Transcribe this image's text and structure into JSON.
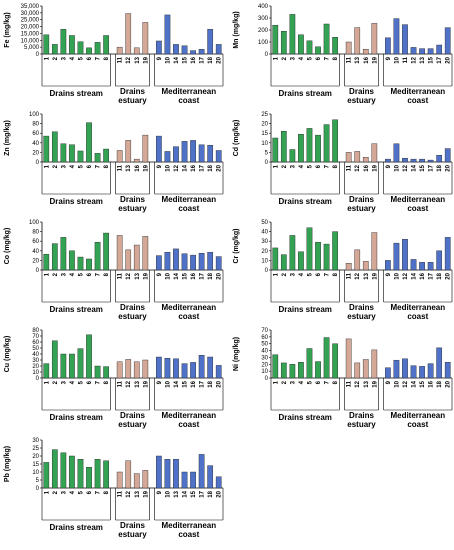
{
  "colors": {
    "drains_stream": "#33a353",
    "drains_estuary": "#d4a796",
    "mediterranean_coast": "#4f72c8",
    "bar_edge": "#222222"
  },
  "chart_data": [
    {
      "type": "bar",
      "ylabel": "Fe (mg/kg)",
      "ylim": [
        0,
        35000
      ],
      "yticks": [
        0,
        5000,
        10000,
        15000,
        20000,
        25000,
        30000,
        35000
      ],
      "ytick_labels": [
        "0",
        "5,000",
        "10,000",
        "15,000",
        "20,000",
        "25,000",
        "30,000",
        "35,000"
      ],
      "categories": [
        "1",
        "2",
        "3",
        "4",
        "5",
        "6",
        "7",
        "8",
        "11",
        "12",
        "13",
        "19",
        "9",
        "10",
        "14",
        "15",
        "16",
        "17",
        "18",
        "20"
      ],
      "groups": [
        {
          "label_lines": [
            "Drains stream"
          ],
          "values": [
            14000,
            7000,
            18000,
            13500,
            9000,
            4500,
            8500,
            13500
          ]
        },
        {
          "label_lines": [
            "Drains",
            "estuary"
          ],
          "values": [
            5000,
            29500,
            4500,
            23000
          ]
        },
        {
          "label_lines": [
            "Mediterranean",
            "coast"
          ],
          "values": [
            9500,
            28500,
            7000,
            6000,
            2500,
            3500,
            18000,
            7000
          ]
        }
      ]
    },
    {
      "type": "bar",
      "ylabel": "Mn (mg/kg)",
      "ylim": [
        0,
        400
      ],
      "yticks": [
        0,
        100,
        200,
        300,
        400
      ],
      "ytick_labels": [
        "0",
        "100",
        "200",
        "300",
        "400"
      ],
      "categories": [
        "1",
        "2",
        "3",
        "4",
        "5",
        "6",
        "7",
        "8",
        "11",
        "13",
        "16",
        "19",
        "9",
        "10",
        "11",
        "12",
        "13",
        "15",
        "17",
        "20"
      ],
      "groups": [
        {
          "label_lines": [
            "Drains stream"
          ],
          "values": [
            240,
            190,
            330,
            160,
            110,
            60,
            250,
            140
          ]
        },
        {
          "label_lines": [
            "Drains",
            "estuary"
          ],
          "values": [
            100,
            220,
            40,
            255
          ]
        },
        {
          "label_lines": [
            "Mediterranean",
            "coast"
          ],
          "values": [
            135,
            295,
            245,
            55,
            45,
            45,
            75,
            220
          ]
        }
      ]
    },
    {
      "type": "bar",
      "ylabel": "Zn (mg/kg)",
      "ylim": [
        0,
        100
      ],
      "yticks": [
        0,
        20,
        40,
        60,
        80,
        100
      ],
      "ytick_labels": [
        "0",
        "20",
        "40",
        "60",
        "80",
        "100"
      ],
      "categories": [
        "1",
        "2",
        "3",
        "4",
        "5",
        "6",
        "7",
        "8",
        "11",
        "13",
        "16",
        "19",
        "9",
        "10",
        "12",
        "14",
        "16",
        "17",
        "18",
        "20"
      ],
      "groups": [
        {
          "label_lines": [
            "Drains stream"
          ],
          "values": [
            54,
            63,
            38,
            36,
            23,
            82,
            18,
            27
          ]
        },
        {
          "label_lines": [
            "Drains",
            "estuary"
          ],
          "values": [
            24,
            45,
            6,
            56
          ]
        },
        {
          "label_lines": [
            "Mediterranean",
            "coast"
          ],
          "values": [
            54,
            22,
            32,
            43,
            45,
            36,
            35,
            24
          ]
        }
      ]
    },
    {
      "type": "bar",
      "ylabel": "Cd (mg/kg)",
      "ylim": [
        0,
        25
      ],
      "yticks": [
        0,
        5,
        10,
        15,
        20,
        25
      ],
      "ytick_labels": [
        "0",
        "5",
        "10",
        "15",
        "20",
        "25"
      ],
      "categories": [
        "1",
        "2",
        "3",
        "4",
        "5",
        "6",
        "7",
        "8",
        "11",
        "12",
        "16",
        "19",
        "9",
        "10",
        "12",
        "14",
        "15",
        "17",
        "18",
        "20"
      ],
      "groups": [
        {
          "label_lines": [
            "Drains stream"
          ],
          "values": [
            12.5,
            16,
            6.5,
            14.5,
            17.5,
            14,
            19.5,
            22
          ]
        },
        {
          "label_lines": [
            "Drains",
            "estuary"
          ],
          "values": [
            5,
            5.5,
            2.5,
            9.5
          ]
        },
        {
          "label_lines": [
            "Mediterranean",
            "coast"
          ],
          "values": [
            1.5,
            9.5,
            2,
            1.5,
            1.5,
            1,
            3.5,
            7
          ]
        }
      ]
    },
    {
      "type": "bar",
      "ylabel": "Co (mg/kg)",
      "ylim": [
        0,
        100
      ],
      "yticks": [
        0,
        20,
        40,
        60,
        80,
        100
      ],
      "ytick_labels": [
        "0",
        "20",
        "40",
        "60",
        "80",
        "100"
      ],
      "categories": [
        "1",
        "2",
        "3",
        "4",
        "5",
        "6",
        "7",
        "8",
        "11",
        "12",
        "13",
        "19",
        "9",
        "10",
        "14",
        "15",
        "16",
        "17",
        "18",
        "20"
      ],
      "groups": [
        {
          "label_lines": [
            "Drains stream"
          ],
          "values": [
            33,
            55,
            68,
            40,
            27,
            23,
            58,
            77
          ]
        },
        {
          "label_lines": [
            "Drains",
            "estuary"
          ],
          "values": [
            72,
            42,
            52,
            70
          ]
        },
        {
          "label_lines": [
            "Mediterranean",
            "coast"
          ],
          "values": [
            30,
            37,
            44,
            34,
            31,
            35,
            37,
            28
          ]
        }
      ]
    },
    {
      "type": "bar",
      "ylabel": "Cr (mg/kg)",
      "ylim": [
        0,
        50
      ],
      "yticks": [
        0,
        10,
        20,
        30,
        40,
        50
      ],
      "ytick_labels": [
        "0",
        "10",
        "20",
        "30",
        "40",
        "50"
      ],
      "categories": [
        "1",
        "2",
        "3",
        "4",
        "5",
        "6",
        "7",
        "8",
        "11",
        "12",
        "13",
        "19",
        "9",
        "10",
        "12",
        "14",
        "16",
        "17",
        "18",
        "20"
      ],
      "groups": [
        {
          "label_lines": [
            "Drains stream"
          ],
          "values": [
            23,
            16,
            36,
            19,
            44,
            29,
            27,
            40
          ]
        },
        {
          "label_lines": [
            "Drains",
            "estuary"
          ],
          "values": [
            7,
            21,
            9,
            39
          ]
        },
        {
          "label_lines": [
            "Mediterranean",
            "coast"
          ],
          "values": [
            10,
            28,
            32,
            11,
            8,
            8,
            20,
            34
          ]
        }
      ]
    },
    {
      "type": "bar",
      "ylabel": "Cu (mg/kg)",
      "ylim": [
        0,
        80
      ],
      "yticks": [
        0,
        10,
        20,
        30,
        40,
        50,
        60,
        70,
        80
      ],
      "ytick_labels": [
        "0",
        "10",
        "20",
        "30",
        "40",
        "50",
        "60",
        "70",
        "80"
      ],
      "categories": [
        "1",
        "2",
        "3",
        "4",
        "5",
        "6",
        "7",
        "8",
        "11",
        "12",
        "13",
        "19",
        "9",
        "10",
        "14",
        "15",
        "16",
        "17",
        "18",
        "20"
      ],
      "groups": [
        {
          "label_lines": [
            "Drains stream"
          ],
          "values": [
            24,
            62,
            40,
            40,
            49,
            72,
            20,
            19
          ]
        },
        {
          "label_lines": [
            "Drains",
            "estuary"
          ],
          "values": [
            27,
            31,
            27,
            30
          ]
        },
        {
          "label_lines": [
            "Mediterranean",
            "coast"
          ],
          "values": [
            35,
            33,
            32,
            24,
            26,
            38,
            35,
            21
          ]
        }
      ]
    },
    {
      "type": "bar",
      "ylabel": "Ni (mg/kg)",
      "ylim": [
        0,
        70
      ],
      "yticks": [
        0,
        10,
        20,
        30,
        40,
        50,
        60,
        70
      ],
      "ytick_labels": [
        "0",
        "10",
        "20",
        "30",
        "40",
        "50",
        "60",
        "70"
      ],
      "categories": [
        "1",
        "2",
        "3",
        "4",
        "5",
        "6",
        "7",
        "8",
        "11",
        "12",
        "13",
        "19",
        "9",
        "10",
        "12",
        "14",
        "15",
        "16",
        "18",
        "20"
      ],
      "groups": [
        {
          "label_lines": [
            "Drains stream"
          ],
          "values": [
            34,
            22,
            20,
            23,
            43,
            24,
            59,
            50
          ]
        },
        {
          "label_lines": [
            "Drains",
            "estuary"
          ],
          "values": [
            57,
            22,
            27,
            41
          ]
        },
        {
          "label_lines": [
            "Mediterranean",
            "coast"
          ],
          "values": [
            15,
            26,
            28,
            18,
            17,
            21,
            44,
            23
          ]
        }
      ]
    },
    {
      "type": "bar",
      "ylabel": "Pb (mg/kg)",
      "ylim": [
        0,
        30
      ],
      "yticks": [
        0,
        5,
        10,
        15,
        20,
        25,
        30
      ],
      "ytick_labels": [
        "0",
        "5",
        "10",
        "15",
        "20",
        "25",
        "30"
      ],
      "categories": [
        "1",
        "2",
        "3",
        "4",
        "5",
        "6",
        "7",
        "8",
        "11",
        "12",
        "13",
        "19",
        "9",
        "10",
        "13",
        "14",
        "15",
        "17",
        "18",
        "20"
      ],
      "groups": [
        {
          "label_lines": [
            "Drains stream"
          ],
          "values": [
            16,
            24,
            22,
            20,
            18,
            13,
            18,
            17
          ]
        },
        {
          "label_lines": [
            "Drains",
            "estuary"
          ],
          "values": [
            10,
            17,
            9,
            11
          ]
        },
        {
          "label_lines": [
            "Mediterranean",
            "coast"
          ],
          "values": [
            20,
            18,
            18,
            10,
            10,
            21,
            14,
            7
          ]
        }
      ]
    }
  ]
}
